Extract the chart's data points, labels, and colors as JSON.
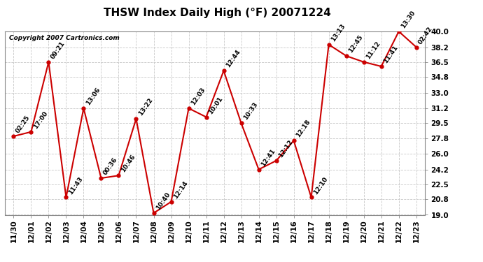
{
  "title": "THSW Index Daily High (°F) 20071224",
  "copyright": "Copyright 2007 Cartronics.com",
  "dates": [
    "11/30",
    "12/01",
    "12/02",
    "12/03",
    "12/04",
    "12/05",
    "12/06",
    "12/07",
    "12/08",
    "12/09",
    "12/10",
    "12/11",
    "12/12",
    "12/13",
    "12/14",
    "12/15",
    "12/16",
    "12/17",
    "12/18",
    "12/19",
    "12/20",
    "12/21",
    "12/22",
    "12/23"
  ],
  "values": [
    28.0,
    28.5,
    36.5,
    21.0,
    31.2,
    23.2,
    23.5,
    30.0,
    19.2,
    20.5,
    31.2,
    30.2,
    35.5,
    29.5,
    24.2,
    25.2,
    27.5,
    21.0,
    38.5,
    37.2,
    36.5,
    36.0,
    40.0,
    38.2
  ],
  "labels": [
    "02:25",
    "17:00",
    "09:21",
    "11:43",
    "13:06",
    "00:36",
    "10:46",
    "13:22",
    "10:40",
    "12:14",
    "12:03",
    "10:01",
    "12:44",
    "10:33",
    "12:41",
    "12:12",
    "12:18",
    "12:10",
    "13:13",
    "12:45",
    "11:12",
    "11:41",
    "13:30",
    "02:42"
  ],
  "ylim": [
    19.0,
    40.0
  ],
  "yticks": [
    19.0,
    20.8,
    22.5,
    24.2,
    26.0,
    27.8,
    29.5,
    31.2,
    33.0,
    34.8,
    36.5,
    38.2,
    40.0
  ],
  "ytick_labels": [
    "19.0",
    "20.8",
    "22.5",
    "24.2",
    "26.0",
    "27.8",
    "29.5",
    "31.2",
    "33.0",
    "34.8",
    "36.5",
    "38.2",
    "40.0"
  ],
  "line_color": "#cc0000",
  "marker_color": "#cc0000",
  "bg_color": "#ffffff",
  "grid_color": "#c8c8c8",
  "title_fontsize": 11,
  "label_fontsize": 6.5,
  "tick_fontsize": 7.5
}
